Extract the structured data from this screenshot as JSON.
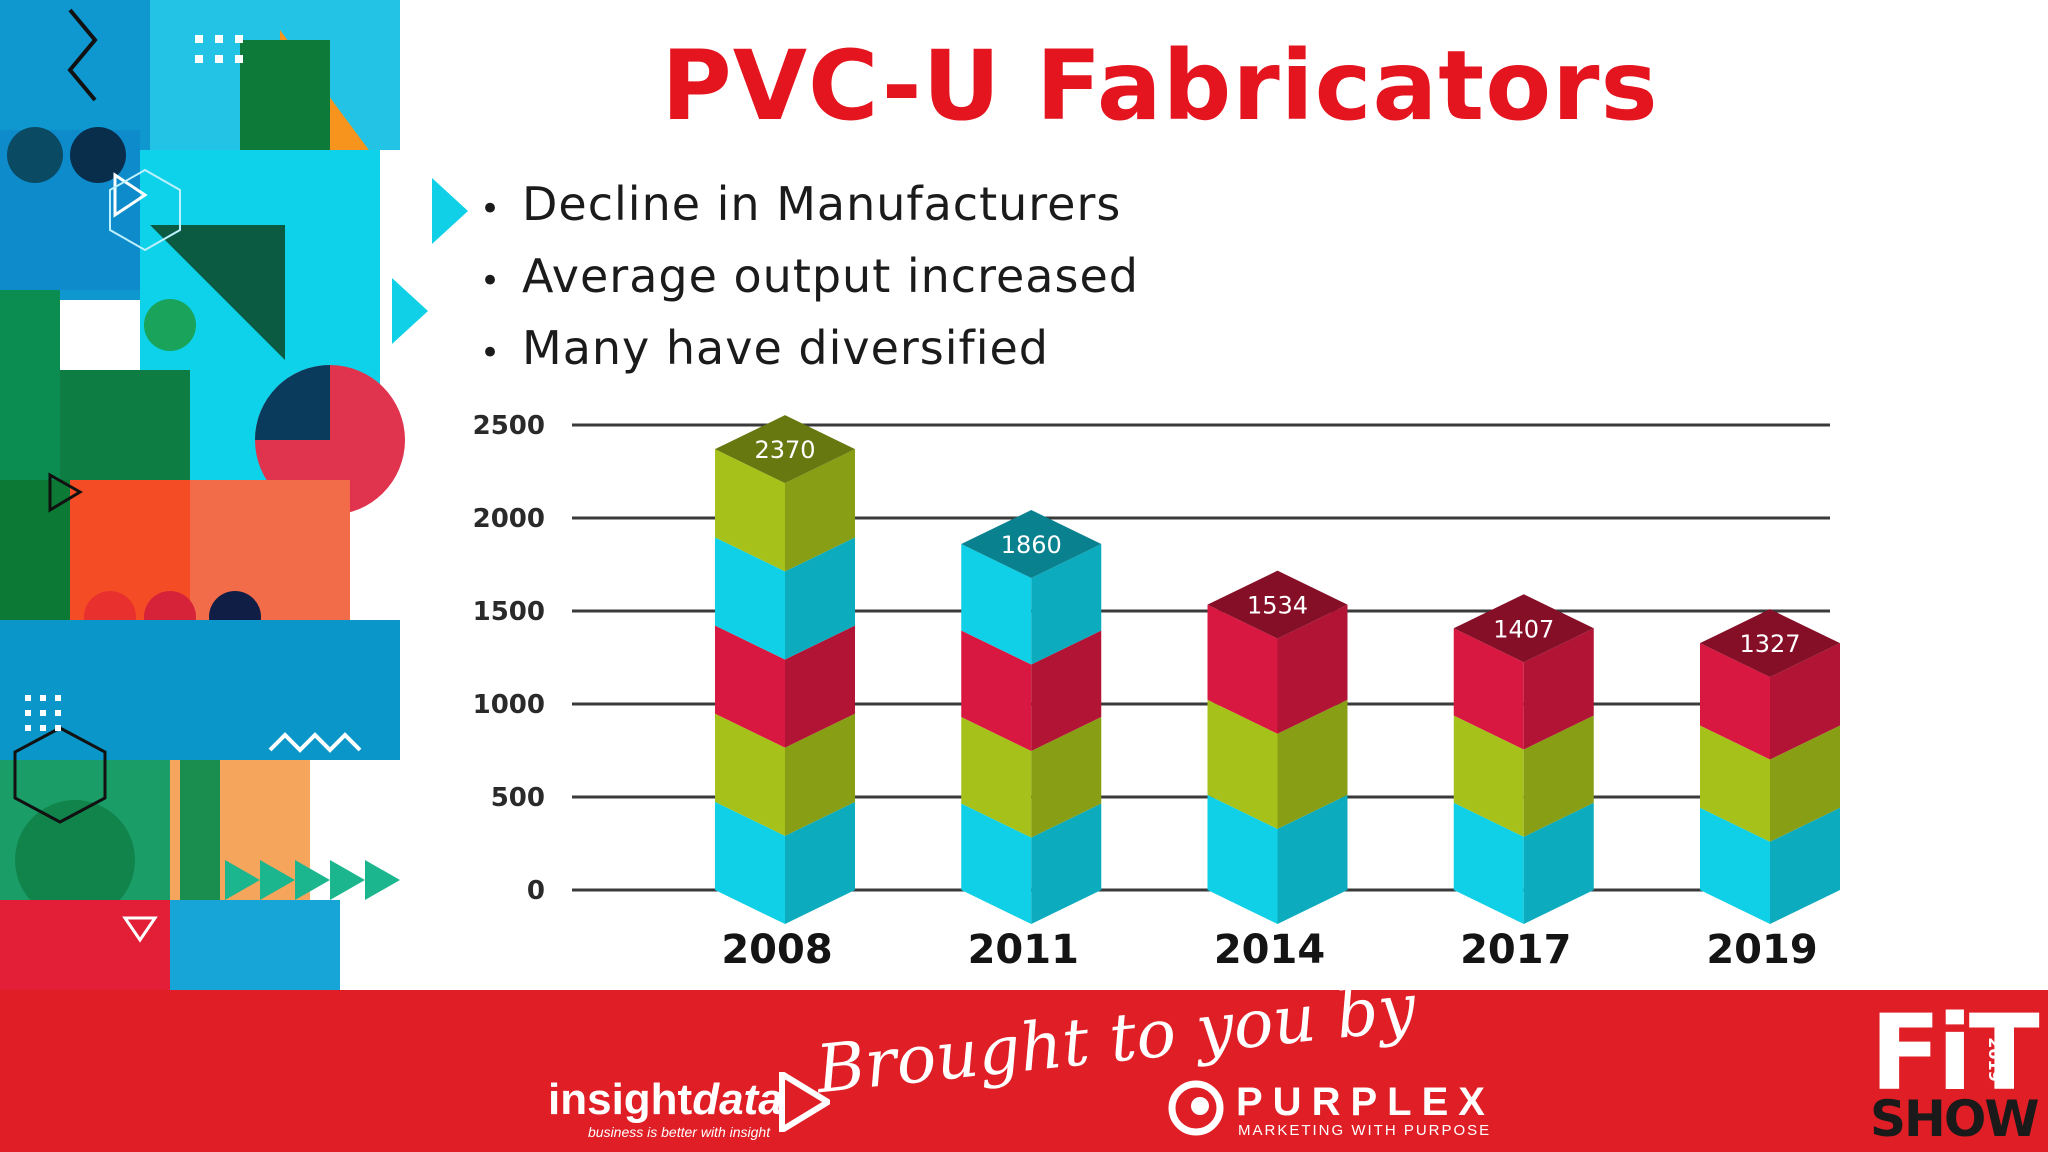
{
  "slide": {
    "title": "PVC-U Fabricators",
    "bullets": [
      "Decline in Manufacturers",
      "Average output increased",
      "Many have diversified"
    ]
  },
  "chart_data": {
    "type": "bar",
    "categories": [
      "2008",
      "2011",
      "2014",
      "2017",
      "2019"
    ],
    "values": [
      2370,
      1860,
      1534,
      1407,
      1327
    ],
    "data_labels": [
      "2370",
      "1860",
      "1534",
      "1407",
      "1327"
    ],
    "ylim": [
      0,
      2500
    ],
    "yticks": [
      0,
      500,
      1000,
      1500,
      2000,
      2500
    ],
    "ytick_labels": [
      "0",
      "500",
      "1000",
      "1500",
      "2000",
      "2500"
    ],
    "grid": true,
    "segment_colors": [
      "#0fd0e6",
      "#a6c21a",
      "#d81840",
      "#0fd0e6",
      "#a6c21a"
    ]
  },
  "footer": {
    "brought_by": "Brought to you by",
    "insight_regular": "insight",
    "insight_italic": "data",
    "insight_tagline": "business is better with insight",
    "purplex_name": "PURPLEX",
    "purplex_tagline": "MARKETING WITH PURPOSE",
    "fit_line1": "FiT",
    "fit_year": "2019",
    "fit_line2": "SHOW"
  },
  "colors": {
    "title_red": "#e4151f",
    "footer_red": "#e01e26",
    "cyan": "#0fd0e6",
    "green": "#a6c21a",
    "crimson": "#d81840"
  }
}
